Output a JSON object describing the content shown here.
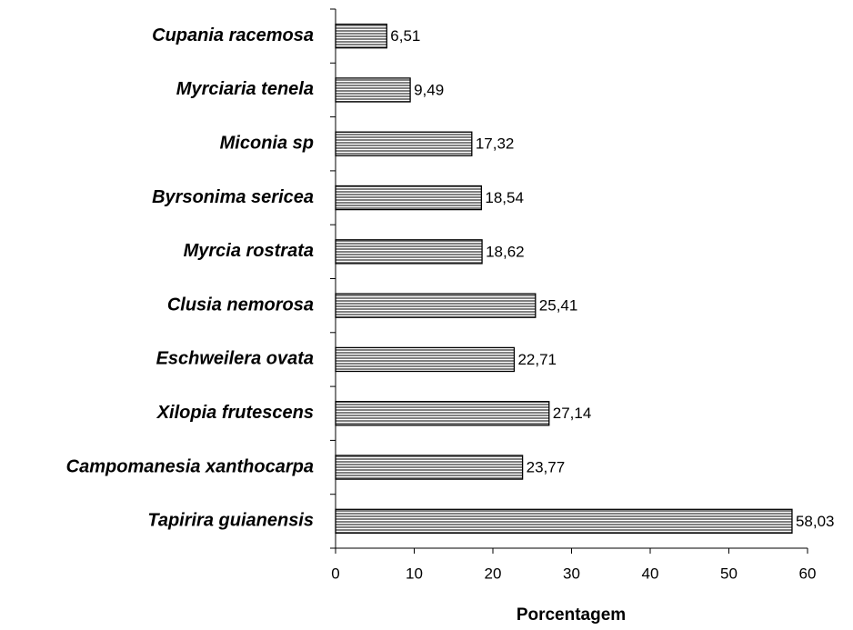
{
  "chart_data": {
    "type": "barh",
    "categories": [
      "Cupania racemosa",
      "Myrciaria tenela",
      "Miconia sp",
      "Byrsonima sericea",
      "Myrcia rostrata",
      "Clusia nemorosa",
      "Eschweilera ovata",
      "Xilopia frutescens",
      "Campomanesia xanthocarpa",
      "Tapirira guianensis"
    ],
    "values": [
      6.51,
      9.49,
      17.32,
      18.54,
      18.62,
      25.41,
      22.71,
      27.14,
      23.77,
      58.03
    ],
    "value_labels": [
      "6,51",
      "9,49",
      "17,32",
      "18,54",
      "18,62",
      "25,41",
      "22,71",
      "27,14",
      "23,77",
      "58,03"
    ],
    "color": "#808080",
    "xlabel": "Porcentagem",
    "xlim": [
      0,
      60
    ],
    "xticks": [
      0,
      10,
      20,
      30,
      40,
      50,
      60
    ]
  }
}
